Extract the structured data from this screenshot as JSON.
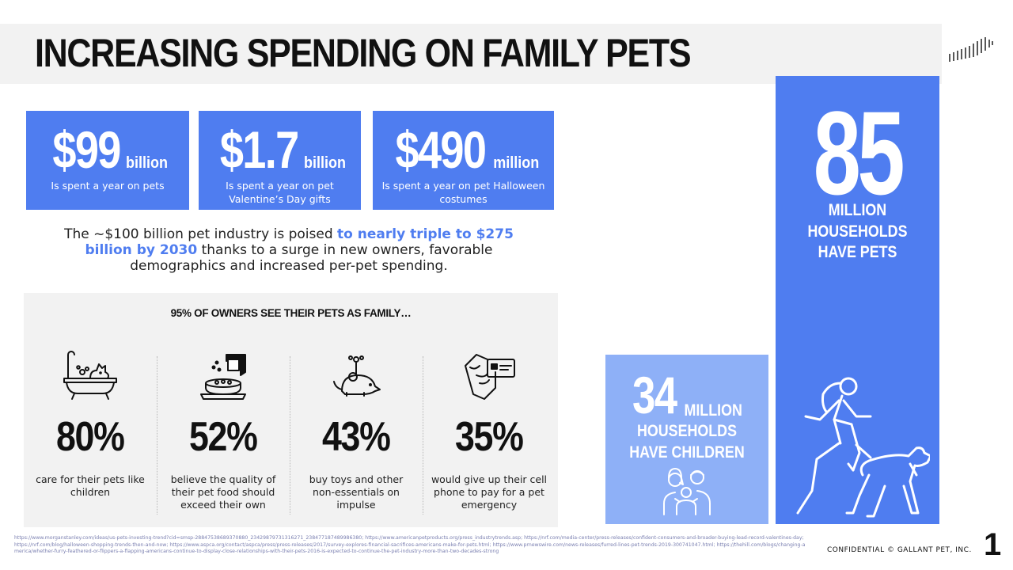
{
  "title": "INCREASING SPENDING ON FAMILY PETS",
  "colors": {
    "accent": "#4f7df0",
    "accent_light": "#8eb0f7",
    "panel_gray": "#f2f2f2",
    "text": "#111111"
  },
  "logo": {
    "icon": "gallant-stripes-logo"
  },
  "stats": [
    {
      "value": "$99",
      "unit": "billion",
      "description": "Is spent a year on pets"
    },
    {
      "value": "$1.7",
      "unit": "billion",
      "description": "Is spent a year on pet Valentine’s Day gifts"
    },
    {
      "value": "$490",
      "unit": "million",
      "description": "Is spent a year on pet Halloween costumes"
    }
  ],
  "intro": {
    "part1": "The ~$100 billion pet industry is poised ",
    "highlight": "to nearly triple to $275 billion by 2030",
    "part2": " thanks to a surge in new owners, favorable demographics and increased per-pet spending."
  },
  "family": {
    "heading": "95% OF OWNERS SEE THEIR PETS AS FAMILY…",
    "items": [
      {
        "icon": "bathtub-dog-icon",
        "percent": "80%",
        "description": "care for their pets like children"
      },
      {
        "icon": "food-bowl-icon",
        "percent": "52%",
        "description": "believe the quality of their pet food should exceed their own"
      },
      {
        "icon": "toy-mouse-icon",
        "percent": "43%",
        "description": "buy toys and other non-essentials on impulse"
      },
      {
        "icon": "hand-card-icon",
        "percent": "35%",
        "description": "would give up their cell phone to pay for a pet emergency"
      }
    ]
  },
  "households_pets": {
    "number": "85",
    "label_line1": "MILLION",
    "label_line2": "HOUSEHOLDS",
    "label_line3": "HAVE PETS",
    "icon": "runner-with-dog-icon"
  },
  "households_children": {
    "number": "34",
    "million": "MILLION",
    "label_line1": "HOUSEHOLDS",
    "label_line2": "HAVE CHILDREN",
    "icon": "family-icon"
  },
  "sources": "https://www.morganstanley.com/ideas/us-pets-investing-trend?cid=smsp-28847538689370880_23429879731316271_238477187489986380; https://www.americanpetproducts.org/press_industrytrends.asp; https://nrf.com/media-center/press-releases/confident-consumers-and-broader-buying-lead-record-valentines-day; https://nrf.com/blog/halloween-shopping-trends-then-and-now; https://www.aspca.org/contact/aspca/press/press-releases/2017/survey-explores-financial-sacrifices-americans-make-for-pets.html; https://www.prnewswire.com/news-releases/furred-lines-pet-trends-2019-300741047.html; https://thehill.com/blogs/changing-america/whether-furry-feathered-or-flippers-a-flapping-americans-continue-to-display-close-relationships-with-their-pets-2016-is-expected-to-continue-the-pet-industry-more-than-two-decades-strong",
  "footer": {
    "confidential": "CONFIDENTIAL © GALLANT PET, INC.",
    "page_number": "1"
  }
}
